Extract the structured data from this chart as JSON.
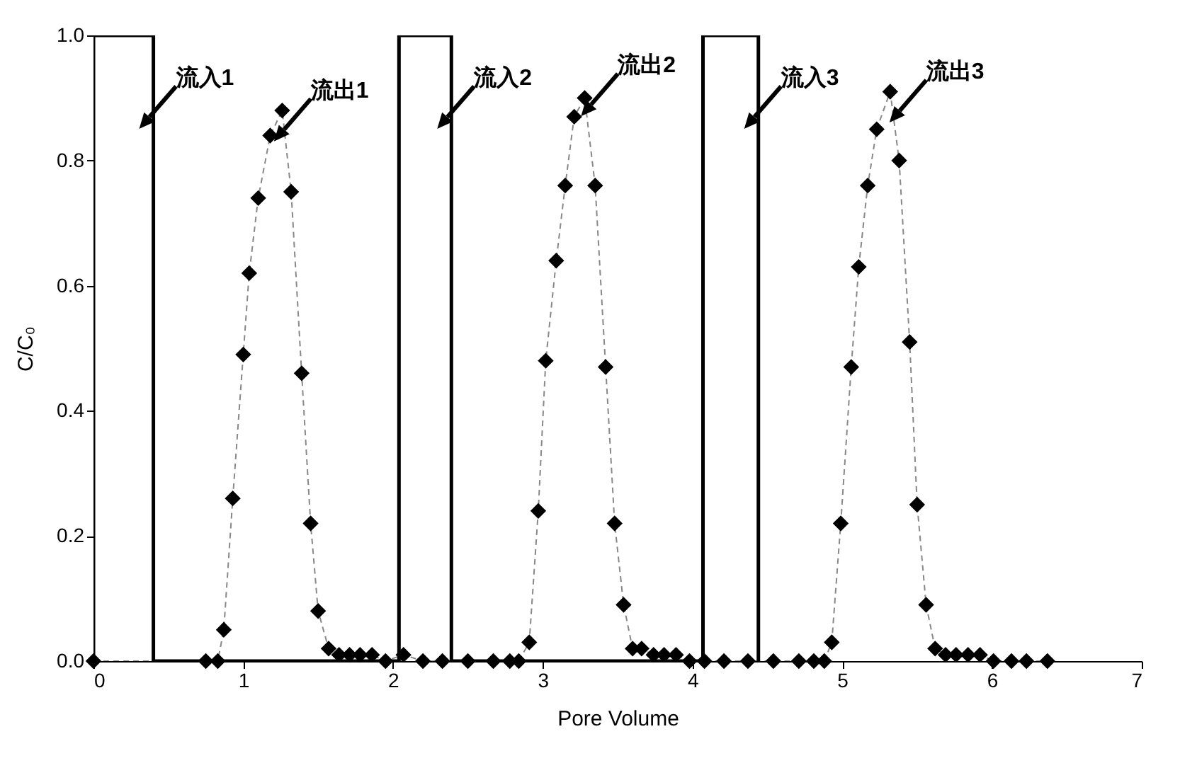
{
  "chart_data": {
    "type": "line",
    "xlabel": "Pore Volume",
    "ylabel": "C/C₀",
    "x": [
      0,
      0.75,
      0.83,
      0.87,
      0.93,
      1.0,
      1.04,
      1.1,
      1.18,
      1.26,
      1.32,
      1.39,
      1.45,
      1.5,
      1.57,
      1.64,
      1.71,
      1.78,
      1.86,
      1.95,
      2.07,
      2.2,
      2.33,
      2.5,
      2.67,
      2.78,
      2.84,
      2.91,
      2.97,
      3.02,
      3.09,
      3.15,
      3.21,
      3.28,
      3.35,
      3.42,
      3.48,
      3.54,
      3.6,
      3.66,
      3.74,
      3.81,
      3.89,
      3.98,
      4.08,
      4.21,
      4.37,
      4.54,
      4.71,
      4.81,
      4.88,
      4.93,
      4.99,
      5.06,
      5.11,
      5.17,
      5.23,
      5.32,
      5.38,
      5.45,
      5.5,
      5.56,
      5.62,
      5.69,
      5.76,
      5.84,
      5.92,
      6.01,
      6.13,
      6.23,
      6.37
    ],
    "series": [
      {
        "color": "#000000",
        "values": [
          0,
          0,
          0,
          0.05,
          0.26,
          0.49,
          0.62,
          0.74,
          0.84,
          0.88,
          0.75,
          0.46,
          0.22,
          0.08,
          0.02,
          0.01,
          0.01,
          0.01,
          0.01,
          0,
          0.01,
          0,
          0,
          0,
          0,
          0,
          0,
          0.03,
          0.24,
          0.48,
          0.64,
          0.76,
          0.87,
          0.9,
          0.76,
          0.47,
          0.22,
          0.09,
          0.02,
          0.02,
          0.01,
          0.01,
          0.01,
          0,
          0,
          0,
          0,
          0,
          0,
          0,
          0,
          0.03,
          0.22,
          0.47,
          0.63,
          0.76,
          0.85,
          0.91,
          0.8,
          0.51,
          0.25,
          0.09,
          0.02,
          0.01,
          0.01,
          0.01,
          0.01,
          0,
          0,
          0,
          0
        ]
      },
      {
        "type": "line",
        "color": "#000000",
        "marker": "none",
        "line_style": "solid",
        "x": [
          0,
          0,
          0.4,
          0.4,
          2.04,
          2.04,
          2.39,
          2.39,
          4.07,
          4.07,
          4.44,
          4.44
        ],
        "values": [
          0,
          1,
          1,
          0,
          0,
          1,
          1,
          0,
          0,
          1,
          1,
          0
        ]
      }
    ],
    "xlim": [
      0,
      7
    ],
    "xticks": [
      0,
      1,
      2,
      3,
      4,
      5,
      6,
      7
    ],
    "ylim": [
      0,
      1
    ],
    "yticks": [
      {
        "value": 0,
        "label": "0.0"
      },
      {
        "value": 0.2,
        "label": "0.2"
      },
      {
        "value": 0.4,
        "label": "0.4"
      },
      {
        "value": 0.6,
        "label": "0.6"
      },
      {
        "value": 0.8,
        "label": "0.8"
      },
      {
        "value": 1,
        "label": "1.0"
      }
    ],
    "annotations": [
      {
        "text": "流入1",
        "x": 0.4,
        "y": 0.81
      },
      {
        "text": "流出1",
        "x": 1.3,
        "y": 0.79
      },
      {
        "text": "流入2",
        "x": 2.39,
        "y": 0.81
      },
      {
        "text": "流出2",
        "x": 3.35,
        "y": 0.83
      },
      {
        "text": "流入3",
        "x": 4.44,
        "y": 0.81
      },
      {
        "text": "流出3",
        "x": 5.41,
        "y": 0.82
      }
    ],
    "grid": false,
    "marker": "diamond",
    "line_style": "dashed"
  }
}
